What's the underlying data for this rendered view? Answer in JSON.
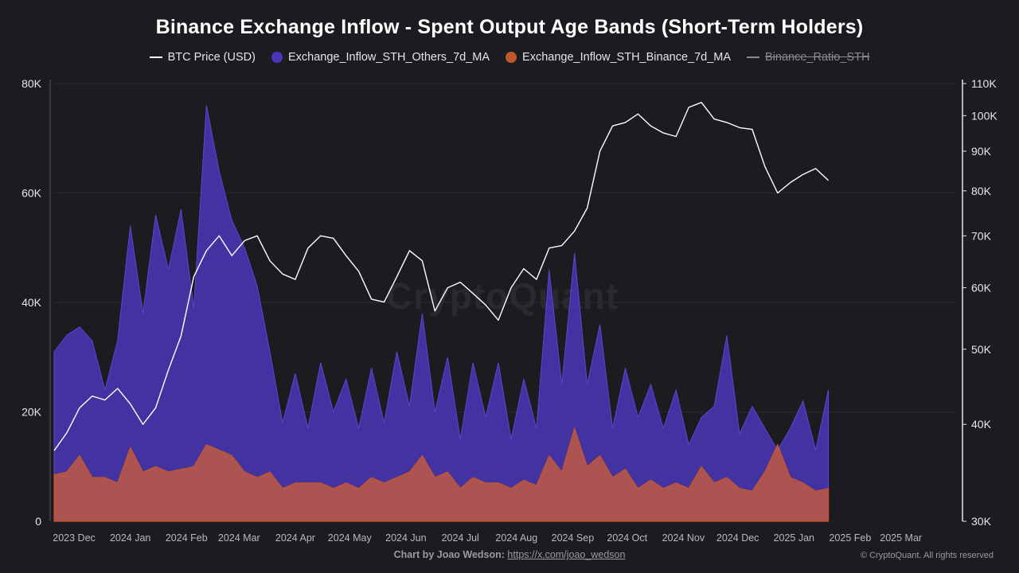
{
  "title": "Binance Exchange Inflow - Spent Output Age Bands (Short-Term Holders)",
  "legend": [
    {
      "label": "BTC Price (USD)",
      "color": "#ffffff",
      "marker": "line",
      "enabled": true
    },
    {
      "label": "Exchange_Inflow_STH_Others_7d_MA",
      "color": "#4a36b8",
      "marker": "dot",
      "enabled": true
    },
    {
      "label": "Exchange_Inflow_STH_Binance_7d_MA",
      "color": "#c0562a",
      "marker": "dot",
      "enabled": true
    },
    {
      "label": "Binance_Ratio_STH",
      "color": "#8a8a92",
      "marker": "line",
      "enabled": false
    }
  ],
  "watermark": "CryptoQuant",
  "footer": {
    "by_label": "Chart by Joao Wedson:",
    "link_text": "https://x.com/joao_wedson",
    "copyright": "© CryptoQuant. All rights reserved"
  },
  "chart_data": {
    "type": "area",
    "x_start": "2023-11-20",
    "x_end": "2025-03-31",
    "x_step_days": 7,
    "x_ticks": [
      "2023 Dec",
      "2024 Jan",
      "2024 Feb",
      "2024 Mar",
      "2024 Apr",
      "2024 May",
      "2024 Jun",
      "2024 Jul",
      "2024 Aug",
      "2024 Sep",
      "2024 Oct",
      "2024 Nov",
      "2024 Dec",
      "2025 Jan",
      "2025 Feb",
      "2025 Mar"
    ],
    "y_left": {
      "ticks": [
        "0",
        "20K",
        "40K",
        "60K",
        "80K"
      ],
      "range": [
        0,
        80000
      ]
    },
    "y_right": {
      "ticks": [
        "30K",
        "40K",
        "50K",
        "60K",
        "70K",
        "80K",
        "90K",
        "100K",
        "110K"
      ],
      "tick_values": [
        30000,
        40000,
        50000,
        60000,
        70000,
        80000,
        90000,
        100000,
        110000
      ],
      "scale": "log",
      "range": [
        30000,
        110000
      ]
    },
    "series": [
      {
        "name": "Exchange_Inflow_STH_Others_7d_MA",
        "axis": "left",
        "color": "#4a36b8",
        "values": [
          31000,
          34000,
          35500,
          33000,
          24000,
          33000,
          54000,
          38000,
          56000,
          46000,
          57000,
          39000,
          76000,
          64000,
          55000,
          50000,
          43000,
          31000,
          18000,
          27000,
          17000,
          29000,
          20000,
          26000,
          17000,
          28000,
          18000,
          31000,
          21000,
          38000,
          20000,
          30000,
          15000,
          29000,
          19000,
          29000,
          15000,
          26000,
          17000,
          46000,
          25000,
          49000,
          25000,
          36000,
          17000,
          28000,
          19000,
          25000,
          17000,
          24000,
          14000,
          19000,
          21000,
          34000,
          16000,
          21000,
          17000,
          13000,
          17000,
          22000,
          13000,
          24000
        ]
      },
      {
        "name": "Exchange_Inflow_STH_Binance_7d_MA",
        "axis": "left",
        "color": "#c0562a",
        "values": [
          8500,
          9000,
          12000,
          8000,
          8000,
          7000,
          13500,
          9000,
          10000,
          9000,
          9500,
          10000,
          14000,
          13000,
          12000,
          9000,
          8000,
          9000,
          6000,
          7000,
          7000,
          7000,
          6000,
          7000,
          6000,
          8000,
          7000,
          8000,
          9000,
          12000,
          8000,
          9000,
          6000,
          8000,
          7000,
          7000,
          6000,
          7500,
          6500,
          12000,
          9000,
          17000,
          10000,
          12000,
          8000,
          9500,
          6000,
          7500,
          6000,
          7000,
          6000,
          10000,
          7000,
          8000,
          6000,
          5500,
          9000,
          14000,
          8000,
          7000,
          5500,
          6000
        ]
      },
      {
        "name": "BTC Price (USD)",
        "axis": "right",
        "color": "#ffffff",
        "values": [
          37000,
          39000,
          42000,
          43500,
          43000,
          44500,
          42500,
          40000,
          42000,
          47000,
          52000,
          62000,
          67000,
          70000,
          66000,
          69000,
          70000,
          65000,
          62500,
          61500,
          67500,
          70000,
          69500,
          66000,
          63000,
          58000,
          57500,
          62000,
          67000,
          65000,
          56000,
          60000,
          61000,
          59000,
          57000,
          54500,
          60000,
          63500,
          61500,
          67500,
          68000,
          71000,
          76000,
          90000,
          97000,
          98000,
          100500,
          97000,
          95000,
          94000,
          102500,
          104000,
          99000,
          98000,
          96500,
          96000,
          86000,
          79500,
          82000,
          84000,
          85500,
          82500
        ]
      }
    ]
  }
}
